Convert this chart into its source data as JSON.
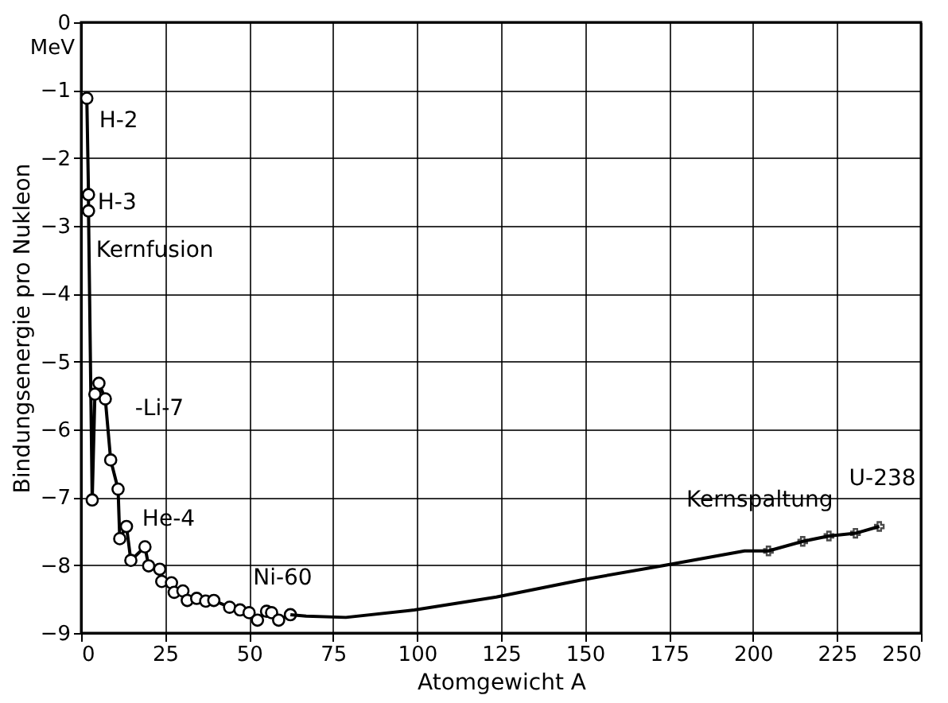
{
  "chart_data": {
    "type": "line",
    "xlabel": "Atomgewicht A",
    "ylabel": "Bindungsenergie pro Nukleon",
    "xlim": [
      0,
      250
    ],
    "xticks": [
      0,
      25,
      50,
      75,
      100,
      125,
      150,
      175,
      200,
      225,
      250
    ],
    "ylim": [
      -9,
      0
    ],
    "yticks": [
      -9,
      -8,
      -7,
      -6,
      -5,
      -4,
      -3,
      -2,
      -1,
      0
    ],
    "grid": true,
    "series": [
      {
        "color": "#000000",
        "marker": "circle",
        "x": [
          1.7,
          2.2,
          2.2,
          3.3,
          4.1,
          5.3,
          7.2,
          8.8,
          11,
          11.5,
          13.5,
          14.8,
          19,
          20.1,
          23.4,
          24,
          26.9,
          27.7,
          30.3,
          31.6,
          34.4,
          37.1,
          39.5,
          44.2,
          47.3,
          50,
          52.5,
          55.2,
          56.7,
          58.8,
          62.3
        ],
        "values": [
          -1.12,
          -2.54,
          -2.78,
          -7.04,
          -5.48,
          -5.32,
          -5.55,
          -6.45,
          -6.88,
          -7.61,
          -7.43,
          -7.93,
          -7.73,
          -8.01,
          -8.06,
          -8.24,
          -8.26,
          -8.4,
          -8.38,
          -8.52,
          -8.49,
          -8.53,
          -8.52,
          -8.62,
          -8.66,
          -8.7,
          -8.81,
          -8.68,
          -8.7,
          -8.81,
          -8.73
        ]
      },
      {
        "color": "#000000",
        "marker": "none",
        "x": [
          62.3,
          67,
          78.8,
          99.2,
          123.6,
          148.7,
          173.9,
          197.5,
          204.6,
          214.8,
          222.6,
          230.5,
          237.6
        ],
        "values": [
          -8.73,
          -8.75,
          -8.77,
          -8.66,
          -8.47,
          -8.22,
          -8.0,
          -7.79,
          -7.79,
          -7.65,
          -7.57,
          -7.53,
          -7.43
        ]
      },
      {
        "type": "scatter",
        "color": "#000000",
        "marker": "cross",
        "x": [
          204.6,
          214.8,
          222.6,
          230.5,
          237.6
        ],
        "values": [
          -7.79,
          -7.65,
          -7.57,
          -7.53,
          -7.43
        ]
      }
    ],
    "annotations": [
      "MeV",
      {
        "text": "H-2",
        "x": 1.7,
        "y": -1.12
      },
      {
        "text": "H-3",
        "x": 2.2,
        "y": -2.66
      },
      {
        "text": "Kernfusion",
        "x": 3,
        "y": -3.6
      },
      {
        "text": "-Li-7",
        "x": 7.2,
        "y": -5.55
      },
      {
        "text": "He-4",
        "x": 3.3,
        "y": -7.04
      },
      {
        "text": "Ni-60",
        "x": 60,
        "y": -8.75
      },
      {
        "text": "Kernspaltung",
        "x": 220,
        "y": -7.6
      },
      {
        "text": "U-238",
        "x": 237.6,
        "y": -7.43
      }
    ]
  }
}
